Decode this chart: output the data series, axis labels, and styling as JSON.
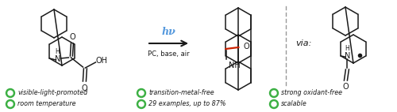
{
  "arrow_label_top": "hν",
  "arrow_label_bottom": "PC, base, air",
  "via_text": "via:",
  "bullet_items_row0": [
    "visible-light-promoted",
    "transition-metal-free",
    "strong oxidant-free"
  ],
  "bullet_items_row1": [
    "room temperature",
    "29 examples, up to 87%",
    "scalable"
  ],
  "bullet_color": "#3cb043",
  "bg_color": "#ffffff",
  "arrow_color": "#1a1a1a",
  "hv_color": "#5599dd",
  "red_bond_color": "#cc2200",
  "dashed_line_color": "#999999",
  "text_color": "#1a1a1a",
  "lw": 1.1
}
